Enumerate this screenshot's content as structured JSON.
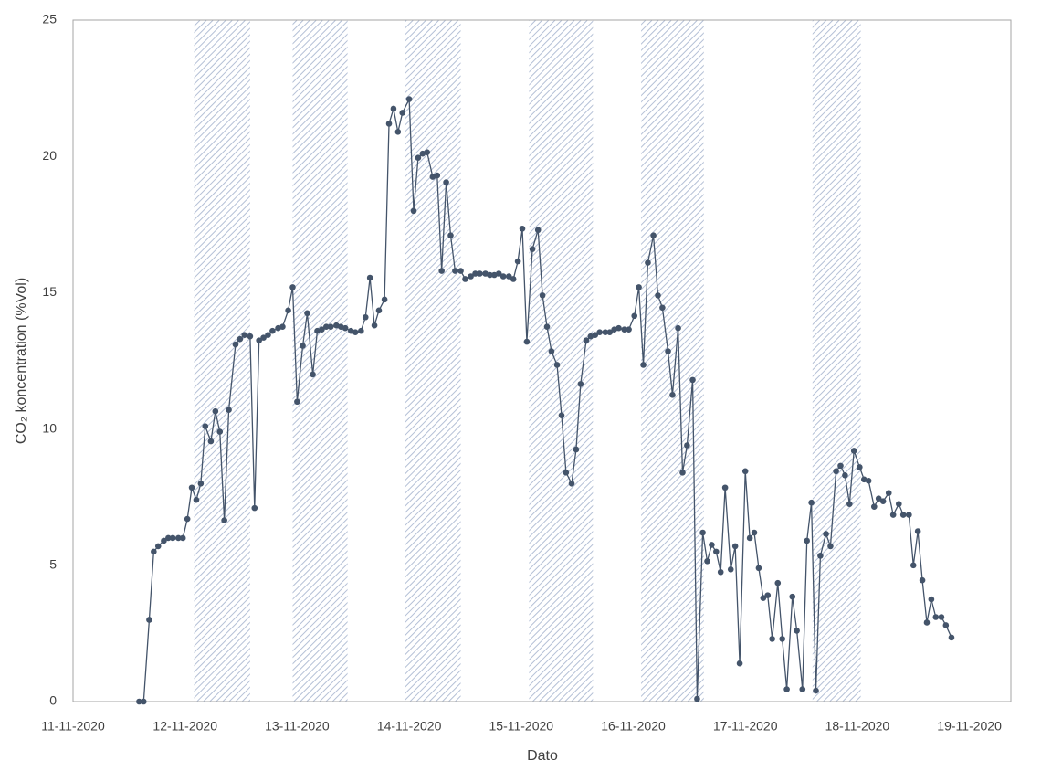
{
  "chart_data": {
    "type": "line",
    "x_label": "Dato",
    "y_label": "CO₂ koncentration (%Vol)",
    "xlim": [
      0,
      8.37
    ],
    "xticks": [
      {
        "value": 0,
        "label": "11-11-2020"
      },
      {
        "value": 1,
        "label": "12-11-2020"
      },
      {
        "value": 2,
        "label": "13-11-2020"
      },
      {
        "value": 3,
        "label": "14-11-2020"
      },
      {
        "value": 4,
        "label": "15-11-2020"
      },
      {
        "value": 5,
        "label": "16-11-2020"
      },
      {
        "value": 6,
        "label": "17-11-2020"
      },
      {
        "value": 7,
        "label": "18-11-2020"
      },
      {
        "value": 8,
        "label": "19-11-2020"
      }
    ],
    "ylim": [
      0,
      25
    ],
    "yticks": [
      0,
      5,
      10,
      15,
      20,
      25
    ],
    "grid": false,
    "shaded_periods": [
      [
        1.08,
        1.58
      ],
      [
        1.96,
        2.45
      ],
      [
        2.96,
        3.46
      ],
      [
        4.07,
        4.64
      ],
      [
        5.07,
        5.63
      ],
      [
        6.6,
        7.03
      ]
    ],
    "band_color": "#b4c0d6",
    "x": [
      0.59,
      0.63,
      0.68,
      0.72,
      0.76,
      0.81,
      0.85,
      0.89,
      0.94,
      0.98,
      1.02,
      1.06,
      1.1,
      1.14,
      1.18,
      1.23,
      1.27,
      1.31,
      1.35,
      1.39,
      1.45,
      1.49,
      1.53,
      1.58,
      1.62,
      1.66,
      1.7,
      1.74,
      1.78,
      1.83,
      1.87,
      1.92,
      1.96,
      2.0,
      2.05,
      2.09,
      2.14,
      2.18,
      2.22,
      2.26,
      2.3,
      2.35,
      2.39,
      2.43,
      2.48,
      2.52,
      2.57,
      2.61,
      2.65,
      2.69,
      2.73,
      2.78,
      2.82,
      2.86,
      2.9,
      2.94,
      3.0,
      3.04,
      3.08,
      3.12,
      3.16,
      3.21,
      3.25,
      3.29,
      3.33,
      3.37,
      3.41,
      3.46,
      3.5,
      3.55,
      3.59,
      3.63,
      3.68,
      3.72,
      3.76,
      3.8,
      3.84,
      3.89,
      3.93,
      3.97,
      4.01,
      4.05,
      4.1,
      4.15,
      4.19,
      4.23,
      4.27,
      4.32,
      4.36,
      4.4,
      4.45,
      4.49,
      4.53,
      4.58,
      4.62,
      4.66,
      4.7,
      4.75,
      4.79,
      4.83,
      4.87,
      4.92,
      4.96,
      5.01,
      5.05,
      5.09,
      5.13,
      5.18,
      5.22,
      5.26,
      5.31,
      5.35,
      5.4,
      5.44,
      5.48,
      5.53,
      5.57,
      5.62,
      5.66,
      5.7,
      5.74,
      5.78,
      5.82,
      5.87,
      5.91,
      5.95,
      6.0,
      6.04,
      6.08,
      6.12,
      6.16,
      6.2,
      6.24,
      6.29,
      6.33,
      6.37,
      6.42,
      6.46,
      6.51,
      6.55,
      6.59,
      6.63,
      6.67,
      6.72,
      6.76,
      6.81,
      6.85,
      6.89,
      6.93,
      6.97,
      7.02,
      7.06,
      7.1,
      7.15,
      7.19,
      7.23,
      7.28,
      7.32,
      7.37,
      7.41,
      7.46,
      7.5,
      7.54,
      7.58,
      7.62,
      7.66,
      7.7,
      7.75,
      7.79,
      7.84
    ],
    "series": [
      {
        "name": "CO₂",
        "color": "#44546a",
        "values": [
          0,
          0,
          3.0,
          5.5,
          5.7,
          5.9,
          6.0,
          6.0,
          6.0,
          6.0,
          6.7,
          7.85,
          7.4,
          8.0,
          10.1,
          9.55,
          10.65,
          9.9,
          6.65,
          10.7,
          13.1,
          13.3,
          13.45,
          13.4,
          7.1,
          13.25,
          13.35,
          13.45,
          13.6,
          13.7,
          13.75,
          14.35,
          15.2,
          11.0,
          13.05,
          14.25,
          12.0,
          13.6,
          13.65,
          13.75,
          13.75,
          13.8,
          13.75,
          13.7,
          13.6,
          13.55,
          13.6,
          14.1,
          15.55,
          13.8,
          14.35,
          14.75,
          21.2,
          21.75,
          20.9,
          21.6,
          22.1,
          18.0,
          19.95,
          20.1,
          20.15,
          19.25,
          19.3,
          15.8,
          19.05,
          17.1,
          15.8,
          15.8,
          15.5,
          15.6,
          15.7,
          15.7,
          15.7,
          15.65,
          15.65,
          15.7,
          15.6,
          15.6,
          15.5,
          16.15,
          17.35,
          13.2,
          16.6,
          17.3,
          14.9,
          13.75,
          12.85,
          12.35,
          10.5,
          8.4,
          8.0,
          9.25,
          11.65,
          13.25,
          13.4,
          13.45,
          13.55,
          13.55,
          13.55,
          13.65,
          13.7,
          13.65,
          13.65,
          14.15,
          15.2,
          12.35,
          16.1,
          17.1,
          14.9,
          14.45,
          12.85,
          11.25,
          13.7,
          8.4,
          9.4,
          11.8,
          0.1,
          6.2,
          5.15,
          5.75,
          5.5,
          4.75,
          7.85,
          4.85,
          5.7,
          1.4,
          8.45,
          6.0,
          6.2,
          4.9,
          3.8,
          3.9,
          2.3,
          4.35,
          2.3,
          0.45,
          3.85,
          2.6,
          0.45,
          5.9,
          7.3,
          0.4,
          5.35,
          6.15,
          5.7,
          8.45,
          8.65,
          8.3,
          7.25,
          9.2,
          8.6,
          8.15,
          8.1,
          7.15,
          7.45,
          7.35,
          7.65,
          6.85,
          7.25,
          6.85,
          6.85,
          5.0,
          6.25,
          4.45,
          2.9,
          3.75,
          3.1,
          3.1,
          2.8,
          2.35
        ]
      }
    ]
  }
}
